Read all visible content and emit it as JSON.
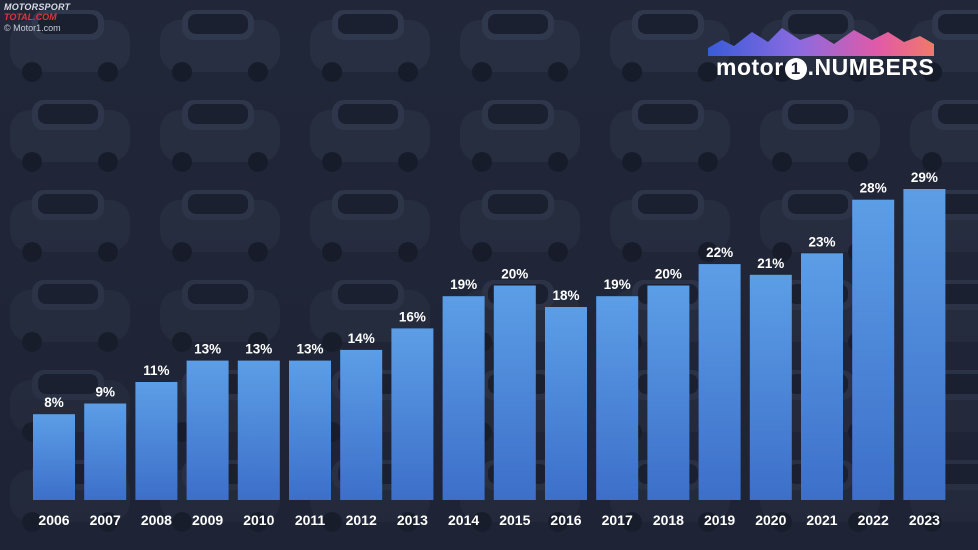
{
  "watermark": {
    "brand_line1": "MOTORSPORT",
    "brand_line2": "TOTAL.COM",
    "copyright": "© Motor1.com"
  },
  "logo": {
    "text_pre": "motor",
    "text_one": "1",
    "text_post": ".NUMBERS"
  },
  "colors": {
    "bar_top": "#5c9ee6",
    "bar_bottom": "#3d6fc9",
    "label": "#ffffff",
    "logo_gradient": [
      "#3a5bd9",
      "#8b6be0",
      "#e05aa8",
      "#f07a6a"
    ]
  },
  "chart_data": {
    "type": "bar",
    "title": "",
    "xlabel": "",
    "ylabel": "",
    "categories": [
      "2006",
      "2007",
      "2008",
      "2009",
      "2010",
      "2011",
      "2012",
      "2013",
      "2014",
      "2015",
      "2016",
      "2017",
      "2018",
      "2019",
      "2020",
      "2021",
      "2022",
      "2023"
    ],
    "values": [
      8,
      9,
      11,
      13,
      13,
      13,
      14,
      16,
      19,
      20,
      18,
      19,
      20,
      22,
      21,
      23,
      28,
      29
    ],
    "data_labels": [
      "8%",
      "9%",
      "11%",
      "13%",
      "13%",
      "13%",
      "14%",
      "16%",
      "19%",
      "20%",
      "18%",
      "19%",
      "20%",
      "22%",
      "21%",
      "23%",
      "28%",
      "29%"
    ],
    "ylim": [
      0,
      29
    ],
    "grid": false,
    "legend": "none"
  }
}
